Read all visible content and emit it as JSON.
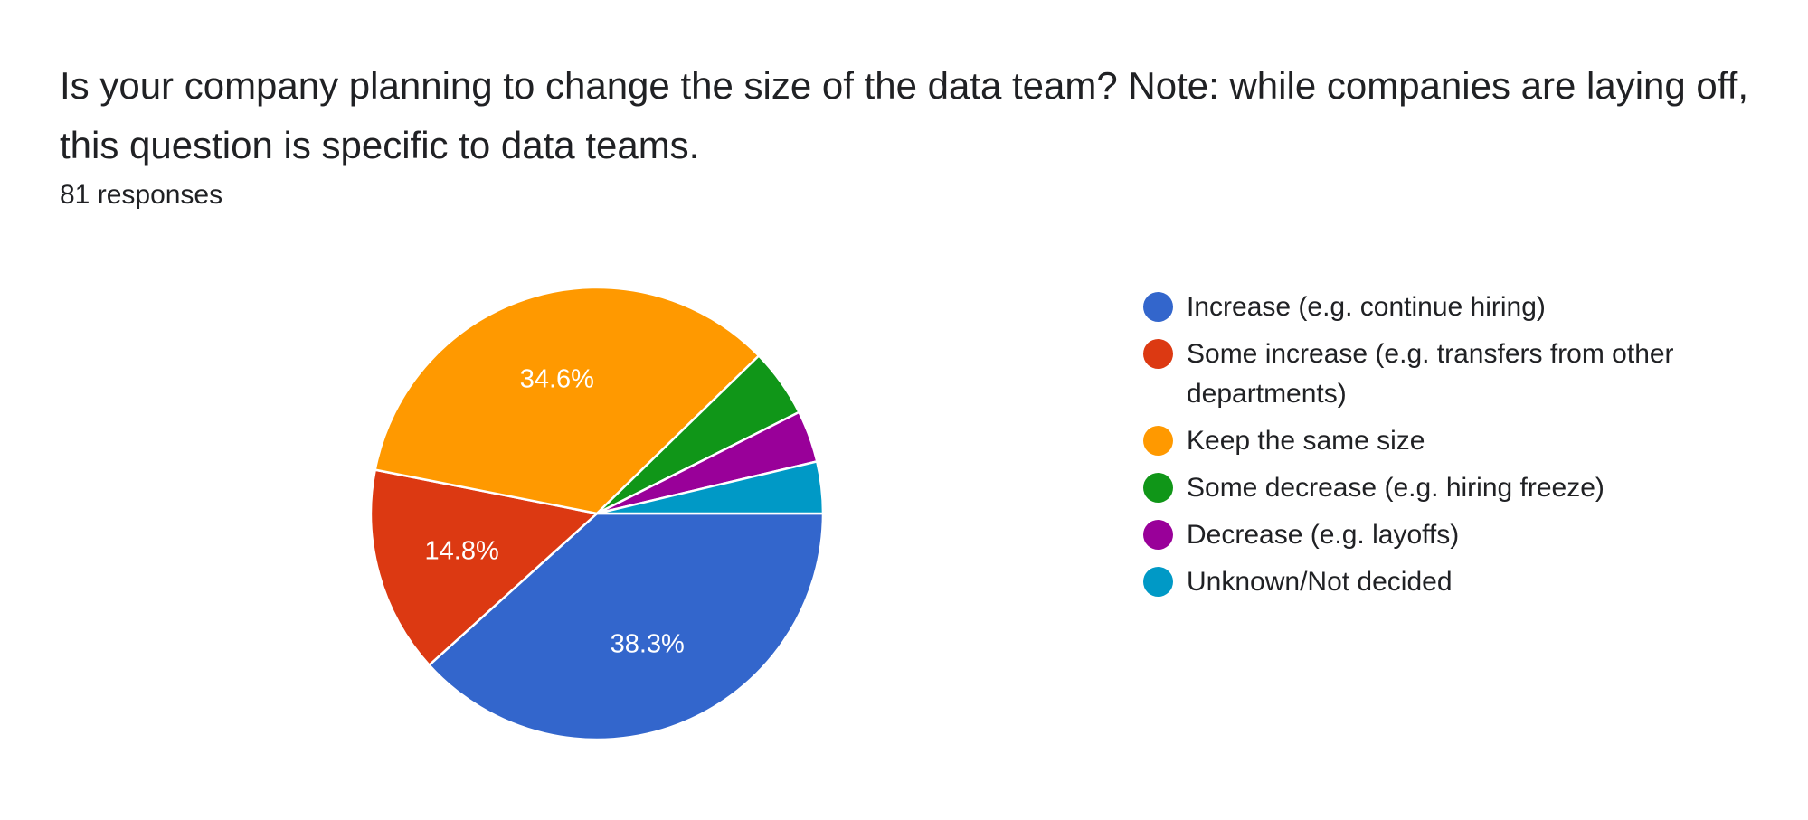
{
  "question": "Is your company planning to change the size of the data team? Note: while companies are laying off, this question is specific to data teams.",
  "response_count": "81 responses",
  "chart_data": {
    "type": "pie",
    "title": "Is your company planning to change the size of the data team? Note: while companies are laying off, this question is specific to data teams.",
    "legend_position": "right",
    "slices": [
      {
        "label": "Increase (e.g. continue hiring)",
        "value": 38.3,
        "value_label": "38.3%",
        "color": "#3366cc"
      },
      {
        "label": "Some increase (e.g. transfers from other departments)",
        "value": 14.8,
        "value_label": "14.8%",
        "color": "#dc3912"
      },
      {
        "label": "Keep the same size",
        "value": 34.6,
        "value_label": "34.6%",
        "color": "#ff9900"
      },
      {
        "label": "Some decrease (e.g. hiring freeze)",
        "value": 4.9,
        "value_label": "",
        "color": "#109618"
      },
      {
        "label": "Decrease (e.g. layoffs)",
        "value": 3.7,
        "value_label": "",
        "color": "#990099"
      },
      {
        "label": "Unknown/Not decided",
        "value": 3.7,
        "value_label": "",
        "color": "#0099c6"
      }
    ]
  }
}
